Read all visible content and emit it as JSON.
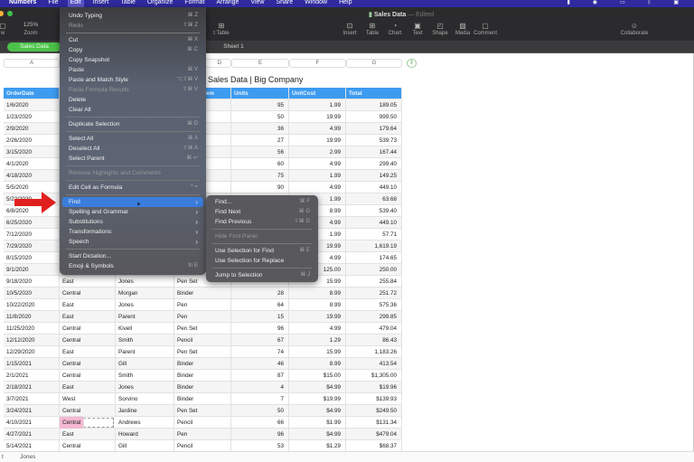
{
  "menubar": {
    "app": "Numbers",
    "items": [
      "File",
      "Edit",
      "Insert",
      "Table",
      "Organize",
      "Format",
      "Arrange",
      "View",
      "Share",
      "Window",
      "Help"
    ],
    "active": "Edit"
  },
  "toolbar": {
    "zoom": "125%",
    "zoom_label": "Zoom",
    "view_label": "w",
    "buttons": [
      {
        "label": "Insert",
        "icon": "insert-icon"
      },
      {
        "label": "Table",
        "icon": "table-icon"
      },
      {
        "label": "Chart",
        "icon": "chart-icon"
      },
      {
        "label": "Text",
        "icon": "text-icon"
      },
      {
        "label": "Shape",
        "icon": "shape-icon"
      },
      {
        "label": "Media",
        "icon": "media-icon"
      },
      {
        "label": "Comment",
        "icon": "comment-icon"
      }
    ],
    "partial_label": "t Table",
    "collaborate": "Collaborate"
  },
  "document": {
    "title": "Sales Data",
    "status": "Edited"
  },
  "sheet_tabs": {
    "active": "Sales Data",
    "other": "Sheet 1"
  },
  "column_letters": [
    "A",
    "B",
    "C",
    "D",
    "E",
    "F",
    "G"
  ],
  "table": {
    "title": "Sales Data | Big Company",
    "headers": [
      "OrderDate",
      "Region",
      "Rep",
      "Item",
      "Units",
      "UnitCost",
      "Total"
    ],
    "rows": [
      [
        "1/6/2020",
        "",
        "",
        "",
        "95",
        "1.99",
        "189.05"
      ],
      [
        "1/23/2020",
        "",
        "",
        "",
        "50",
        "19.99",
        "999.50"
      ],
      [
        "2/9/2020",
        "",
        "",
        "",
        "36",
        "4.99",
        "179.64"
      ],
      [
        "2/26/2020",
        "",
        "",
        "",
        "27",
        "19.99",
        "539.73"
      ],
      [
        "3/15/2020",
        "",
        "",
        "",
        "56",
        "2.99",
        "167.44"
      ],
      [
        "4/1/2020",
        "",
        "",
        "",
        "60",
        "4.99",
        "299.40"
      ],
      [
        "4/18/2020",
        "",
        "",
        "",
        "75",
        "1.99",
        "149.25"
      ],
      [
        "5/5/2020",
        "",
        "",
        "",
        "90",
        "4.99",
        "449.10"
      ],
      [
        "5/22/2020",
        "",
        "",
        "",
        "32",
        "1.99",
        "63.68"
      ],
      [
        "6/8/2020",
        "",
        "",
        "",
        "",
        "8.99",
        "539.40"
      ],
      [
        "6/25/2020",
        "",
        "",
        "",
        "",
        "4.99",
        "449.10"
      ],
      [
        "7/12/2020",
        "",
        "",
        "",
        "",
        "1.99",
        "57.71"
      ],
      [
        "7/29/2020",
        "",
        "",
        "",
        "",
        "19.99",
        "1,619.19"
      ],
      [
        "8/15/2020",
        "",
        "",
        "",
        "",
        "4.99",
        "174.65"
      ],
      [
        "9/1/2020",
        "",
        "",
        "",
        "",
        "125.00",
        "250.00"
      ],
      [
        "9/18/2020",
        "East",
        "Jones",
        "Pen Set",
        "",
        "15.99",
        "255.84"
      ],
      [
        "10/5/2020",
        "Central",
        "Morgan",
        "Binder",
        "28",
        "8.99",
        "251.72"
      ],
      [
        "10/22/2020",
        "East",
        "Jones",
        "Pen",
        "64",
        "8.99",
        "575.36"
      ],
      [
        "11/8/2020",
        "East",
        "Parent",
        "Pen",
        "15",
        "19.99",
        "299.85"
      ],
      [
        "11/25/2020",
        "Central",
        "Kivell",
        "Pen Set",
        "96",
        "4.99",
        "479.04"
      ],
      [
        "12/12/2020",
        "Central",
        "Smith",
        "Pencil",
        "67",
        "1.29",
        "86.43"
      ],
      [
        "12/29/2020",
        "East",
        "Parent",
        "Pen Set",
        "74",
        "15.99",
        "1,183.26"
      ],
      [
        "1/15/2021",
        "Central",
        "Gill",
        "Binder",
        "46",
        "8.99",
        "413.54"
      ],
      [
        "2/1/2021",
        "Central",
        "Smith",
        "Binder",
        "87",
        "$15.00",
        "$1,305.00"
      ],
      [
        "2/18/2021",
        "East",
        "Jones",
        "Binder",
        "4",
        "$4.99",
        "$19.96"
      ],
      [
        "3/7/2021",
        "West",
        "Sorvino",
        "Binder",
        "7",
        "$19.99",
        "$139.93"
      ],
      [
        "3/24/2021",
        "Central",
        "Jardine",
        "Pen Set",
        "50",
        "$4.99",
        "$249.50"
      ],
      [
        "4/10/2021",
        "Central",
        "Andrews",
        "Pencil",
        "66",
        "$1.99",
        "$131.34"
      ],
      [
        "4/27/2021",
        "East",
        "Howard",
        "Pen",
        "96",
        "$4.99",
        "$479.04"
      ],
      [
        "5/14/2021",
        "Central",
        "Gill",
        "Pencil",
        "53",
        "$1.29",
        "$68.37"
      ]
    ],
    "selected_cell": "4/10/2021 Region"
  },
  "edit_menu": [
    {
      "label": "Undo Typing",
      "shortcut": "⌘ Z"
    },
    {
      "label": "Redo",
      "shortcut": "⇧⌘ Z",
      "disabled": true
    },
    {
      "sep": true
    },
    {
      "label": "Cut",
      "shortcut": "⌘ X"
    },
    {
      "label": "Copy",
      "shortcut": "⌘ C"
    },
    {
      "label": "Copy Snapshot",
      "shortcut": ""
    },
    {
      "label": "Paste",
      "shortcut": "⌘ V"
    },
    {
      "label": "Paste and Match Style",
      "shortcut": "⌥⇧⌘ V"
    },
    {
      "label": "Paste Formula Results",
      "shortcut": "⇧⌘ V",
      "disabled": true
    },
    {
      "label": "Delete",
      "shortcut": ""
    },
    {
      "label": "Clear All",
      "shortcut": ""
    },
    {
      "sep": true
    },
    {
      "label": "Duplicate Selection",
      "shortcut": "⌘ D"
    },
    {
      "sep": true
    },
    {
      "label": "Select All",
      "shortcut": "⌘ A"
    },
    {
      "label": "Deselect All",
      "shortcut": "⇧⌘ A"
    },
    {
      "label": "Select Parent",
      "shortcut": "⌘ ↩"
    },
    {
      "sep": true
    },
    {
      "label": "Remove Highlights and Comments",
      "shortcut": "",
      "disabled": true
    },
    {
      "sep": true
    },
    {
      "label": "Edit Cell as Formula",
      "shortcut": "^ ="
    },
    {
      "sep": true
    },
    {
      "label": "Find",
      "shortcut": "›",
      "highlighted": true
    },
    {
      "label": "Spelling and Grammar",
      "shortcut": "›"
    },
    {
      "label": "Substitutions",
      "shortcut": "›"
    },
    {
      "label": "Transformations",
      "shortcut": "›"
    },
    {
      "label": "Speech",
      "shortcut": "›"
    },
    {
      "sep": true
    },
    {
      "label": "Start Dictation...",
      "shortcut": ""
    },
    {
      "label": "Emoji & Symbols",
      "shortcut": "fn E"
    }
  ],
  "find_submenu": [
    {
      "label": "Find...",
      "shortcut": "⌘ F"
    },
    {
      "label": "Find Next",
      "shortcut": "⌘ G"
    },
    {
      "label": "Find Previous",
      "shortcut": "⇧⌘ G"
    },
    {
      "sep": true
    },
    {
      "label": "Hide Find Panel",
      "shortcut": "",
      "disabled": true
    },
    {
      "sep": true
    },
    {
      "label": "Use Selection for Find",
      "shortcut": "⌘ E"
    },
    {
      "label": "Use Selection for Replace",
      "shortcut": ""
    },
    {
      "sep": true
    },
    {
      "label": "Jump to Selection",
      "shortcut": "⌘ J"
    }
  ],
  "bottom_tabs": [
    "t",
    "Jones"
  ],
  "colors": {
    "menubar": "#2f2a9e",
    "header": "#3d9bf0",
    "highlight": "#3b7ddc",
    "tab_active": "#4cc24a",
    "arrow": "#e0201e",
    "selected_cell": "#f4b8d2"
  }
}
